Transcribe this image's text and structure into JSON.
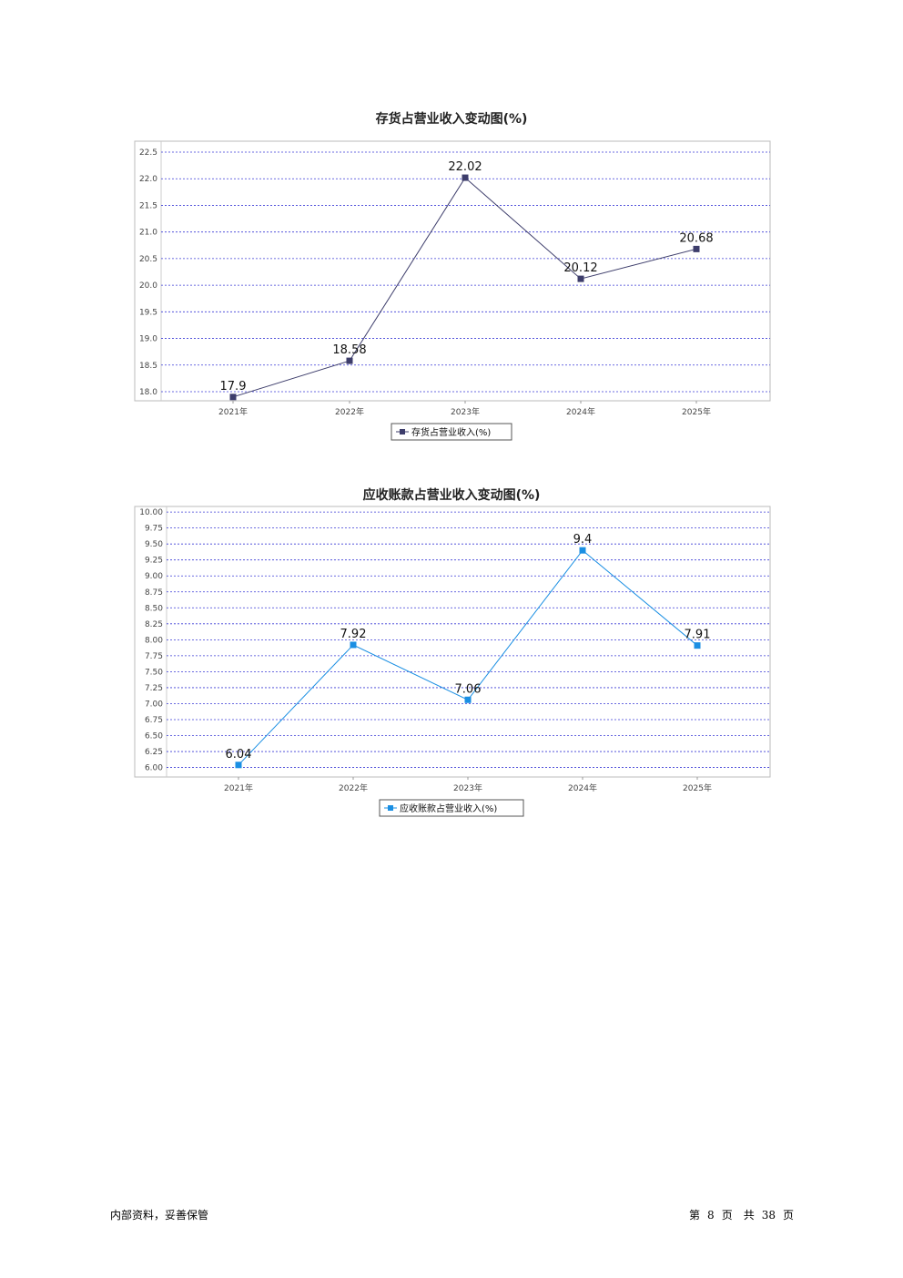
{
  "chart_data": [
    {
      "type": "line",
      "title": "存货占营业收入变动图(%)",
      "categories": [
        "2021年",
        "2022年",
        "2023年",
        "2024年",
        "2025年"
      ],
      "series": [
        {
          "name": "存货占营业收入(%)",
          "values": [
            17.9,
            18.58,
            22.02,
            20.12,
            20.68
          ],
          "color": "#3d3d6b"
        }
      ],
      "yticks": [
        "18.0",
        "18.5",
        "19.0",
        "19.5",
        "20.0",
        "20.5",
        "21.0",
        "21.5",
        "22.0",
        "22.5"
      ],
      "ylim": [
        17.88,
        22.62
      ],
      "grid": true,
      "legend": "bottom-center",
      "marker": "square"
    },
    {
      "type": "line",
      "title": "应收账款占营业收入变动图(%)",
      "categories": [
        "2021年",
        "2022年",
        "2023年",
        "2024年",
        "2025年"
      ],
      "series": [
        {
          "name": "应收账款占营业收入(%)",
          "values": [
            6.04,
            7.92,
            7.06,
            9.4,
            7.91
          ],
          "color": "#1a8fe3"
        }
      ],
      "yticks": [
        "6.00",
        "6.25",
        "6.50",
        "6.75",
        "7.00",
        "7.25",
        "7.50",
        "7.75",
        "8.00",
        "8.25",
        "8.50",
        "8.75",
        "9.00",
        "9.25",
        "9.50",
        "9.75",
        "10.00"
      ],
      "ylim": [
        5.88,
        10.03
      ],
      "grid": true,
      "legend": "bottom-center",
      "marker": "square"
    }
  ],
  "footer": {
    "left": "内部资料，妥善保管",
    "page_prefix": "第",
    "page_num": "8",
    "page_mid": "页　共",
    "page_total": "38",
    "page_suffix": "页"
  }
}
